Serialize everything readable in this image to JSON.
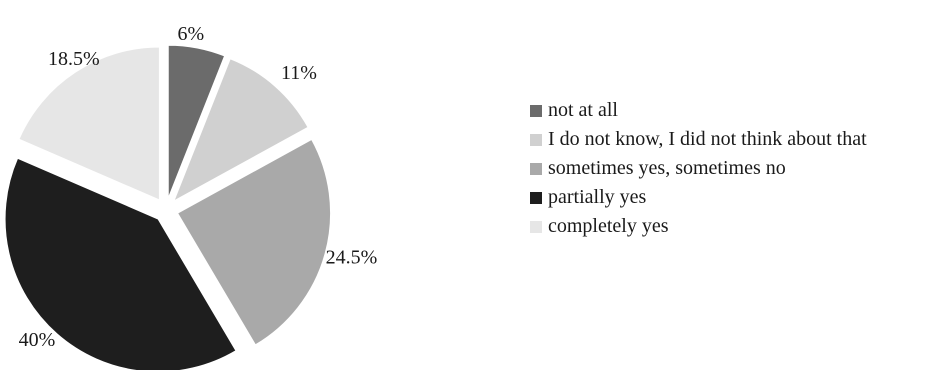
{
  "chart_data": {
    "type": "pie",
    "title": "",
    "slices": [
      {
        "label": "not at all",
        "value": 6,
        "value_label": "6%",
        "color": "#6b6b6b"
      },
      {
        "label": "I do not know, I did not think about that",
        "value": 11,
        "value_label": "11%",
        "color": "#d0d0d0"
      },
      {
        "label": "sometimes yes, sometimes no",
        "value": 24.5,
        "value_label": "24.5%",
        "color": "#a9a9a9"
      },
      {
        "label": "partially yes",
        "value": 40,
        "value_label": "40%",
        "color": "#1e1e1e"
      },
      {
        "label": "completely yes",
        "value": 18.5,
        "value_label": "18.5%",
        "color": "#e6e6e6"
      }
    ],
    "exploded": true,
    "start": "12 o'clock, clockwise",
    "legend_position": "right"
  }
}
